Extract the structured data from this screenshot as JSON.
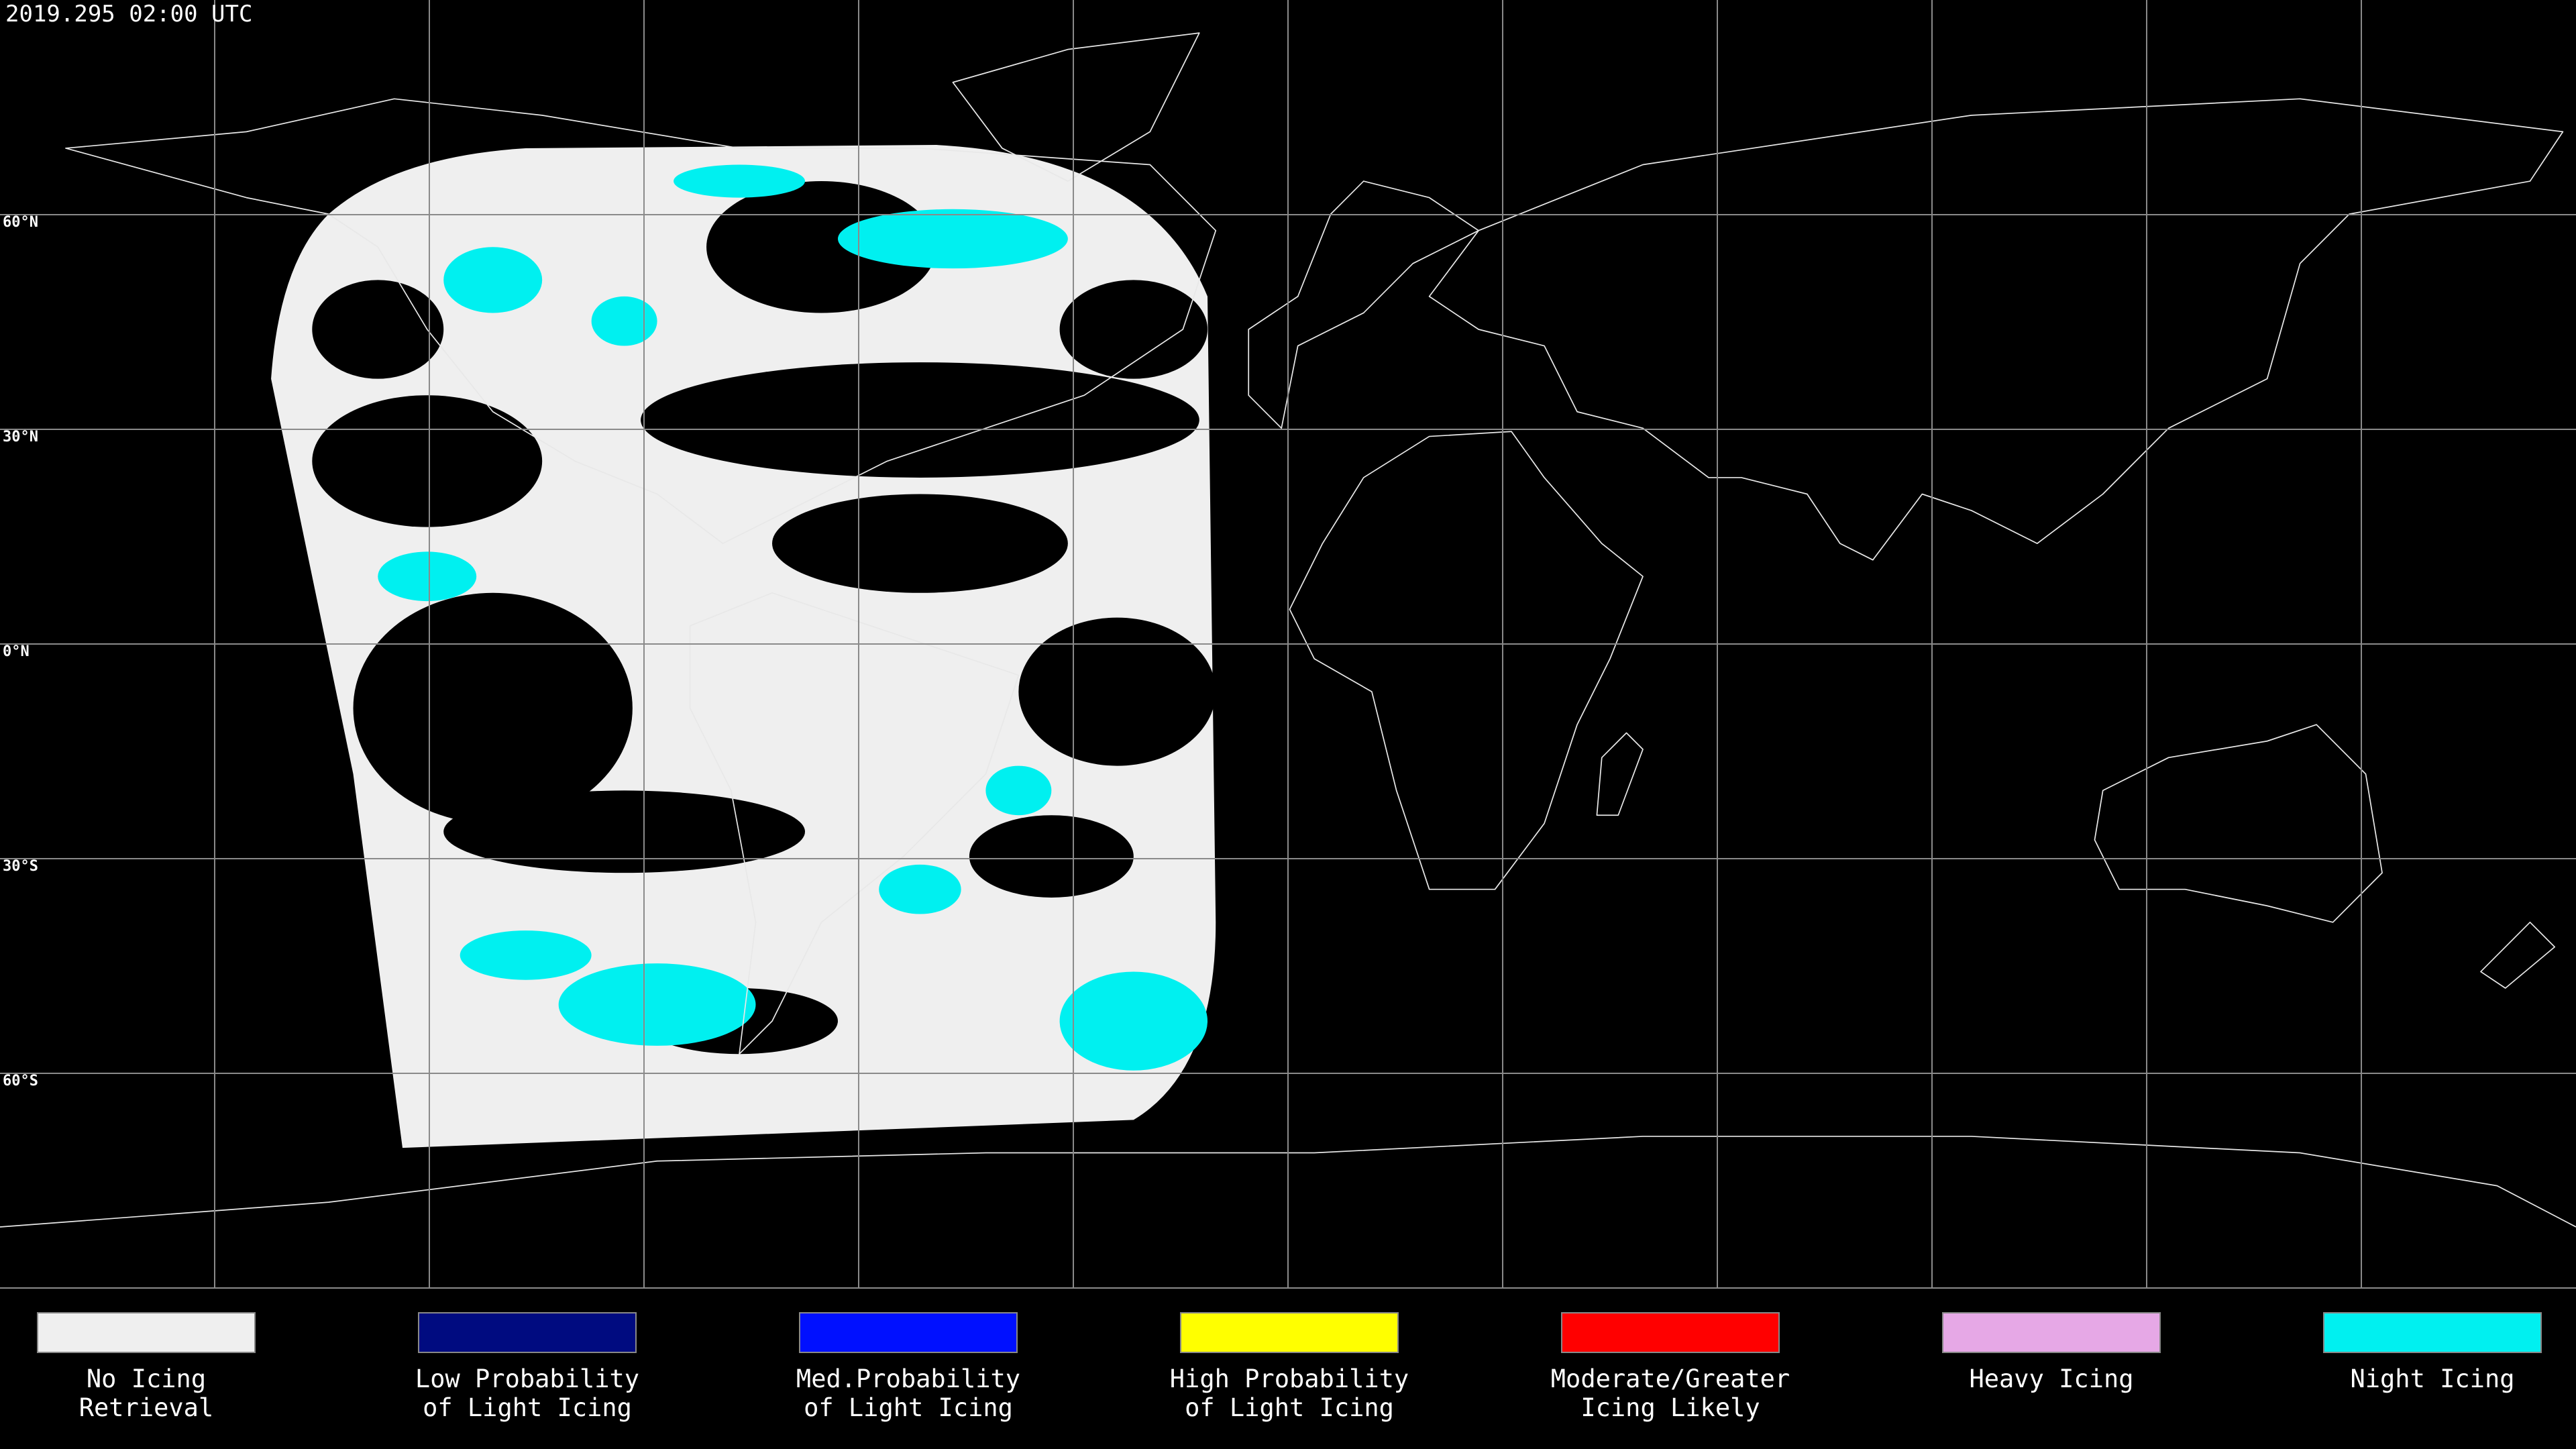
{
  "timestamp": "2019.295 02:00 UTC",
  "latitude_labels": [
    "60°N",
    "30°N",
    "0°N",
    "30°S",
    "60°S"
  ],
  "legend": [
    {
      "lines": [
        "No Icing",
        "Retrieval"
      ],
      "color": "#efefef"
    },
    {
      "lines": [
        "Low Probability",
        "of Light Icing"
      ],
      "color": "#000b80"
    },
    {
      "lines": [
        "Med.Probability",
        "of Light Icing"
      ],
      "color": "#0010ff"
    },
    {
      "lines": [
        "High Probability",
        "of Light Icing"
      ],
      "color": "#ffff00"
    },
    {
      "lines": [
        "Moderate/Greater",
        "Icing Likely"
      ],
      "color": "#ff0000"
    },
    {
      "lines": [
        "Heavy Icing"
      ],
      "color": "#e6a8e6"
    },
    {
      "lines": [
        "Night Icing"
      ],
      "color": "#00f0f0"
    }
  ]
}
